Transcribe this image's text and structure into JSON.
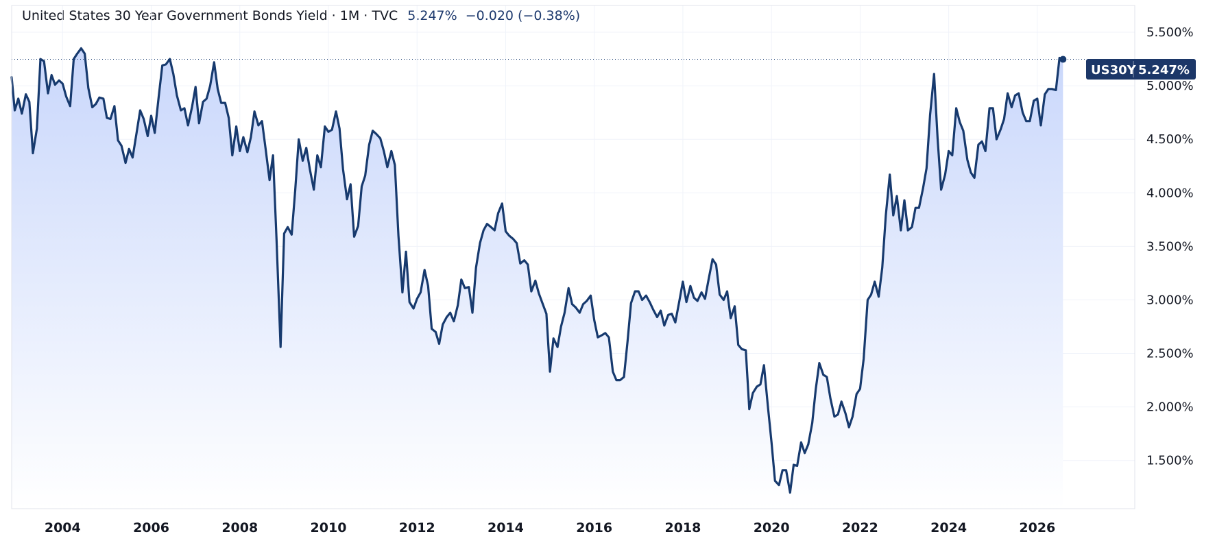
{
  "header": {
    "title": "United States 30 Year Government Bonds Yield · 1M · TVC",
    "last": "5.247%",
    "change": "−0.020 (−0.38%)"
  },
  "badge": {
    "symbol": "US30Y",
    "value": "5.247%"
  },
  "colors": {
    "line": "#173a6e",
    "fill_top": "#c9d7fb",
    "fill_bottom": "#ffffff",
    "badge": "#1c3768"
  },
  "chart_data": {
    "type": "area",
    "title": "United States 30 Year Government Bonds Yield · 1M · TVC",
    "xlabel": "",
    "ylabel": "",
    "ylim": [
      1.05,
      5.75
    ],
    "xlim": [
      2002.85,
      2028.2
    ],
    "grid": true,
    "y_ticks": [
      "5.500%",
      "5.000%",
      "4.500%",
      "4.000%",
      "3.500%",
      "3.000%",
      "2.500%",
      "2.000%",
      "1.500%"
    ],
    "y_tick_values": [
      5.5,
      5.0,
      4.5,
      4.0,
      3.5,
      3.0,
      2.5,
      2.0,
      1.5
    ],
    "x_ticks": [
      "2004",
      "2006",
      "2008",
      "2010",
      "2012",
      "2014",
      "2016",
      "2018",
      "2020",
      "2022",
      "2024",
      "2026"
    ],
    "x_tick_values": [
      2004,
      2006,
      2008,
      2010,
      2012,
      2014,
      2016,
      2018,
      2020,
      2022,
      2024,
      2026
    ],
    "series": [
      {
        "name": "US30Y",
        "x": [
          2002.85,
          2002.92,
          2003.0,
          2003.08,
          2003.17,
          2003.25,
          2003.33,
          2003.42,
          2003.5,
          2003.58,
          2003.67,
          2003.75,
          2003.83,
          2003.92,
          2004.0,
          2004.08,
          2004.17,
          2004.25,
          2004.33,
          2004.42,
          2004.5,
          2004.58,
          2004.67,
          2004.75,
          2004.83,
          2004.92,
          2005.0,
          2005.08,
          2005.17,
          2005.25,
          2005.33,
          2005.42,
          2005.5,
          2005.58,
          2005.67,
          2005.75,
          2005.83,
          2005.92,
          2006.0,
          2006.08,
          2006.17,
          2006.25,
          2006.33,
          2006.42,
          2006.5,
          2006.58,
          2006.67,
          2006.75,
          2006.83,
          2006.92,
          2007.0,
          2007.08,
          2007.17,
          2007.25,
          2007.33,
          2007.42,
          2007.5,
          2007.58,
          2007.67,
          2007.75,
          2007.83,
          2007.92,
          2008.0,
          2008.08,
          2008.17,
          2008.25,
          2008.33,
          2008.42,
          2008.5,
          2008.58,
          2008.67,
          2008.75,
          2008.83,
          2008.92,
          2009.0,
          2009.08,
          2009.17,
          2009.25,
          2009.33,
          2009.42,
          2009.5,
          2009.58,
          2009.67,
          2009.75,
          2009.83,
          2009.92,
          2010.0,
          2010.08,
          2010.17,
          2010.25,
          2010.33,
          2010.42,
          2010.5,
          2010.58,
          2010.67,
          2010.75,
          2010.83,
          2010.92,
          2011.0,
          2011.08,
          2011.17,
          2011.25,
          2011.33,
          2011.42,
          2011.5,
          2011.58,
          2011.67,
          2011.75,
          2011.83,
          2011.92,
          2012.0,
          2012.08,
          2012.17,
          2012.25,
          2012.33,
          2012.42,
          2012.5,
          2012.58,
          2012.67,
          2012.75,
          2012.83,
          2012.92,
          2013.0,
          2013.08,
          2013.17,
          2013.25,
          2013.33,
          2013.42,
          2013.5,
          2013.58,
          2013.67,
          2013.75,
          2013.83,
          2013.92,
          2014.0,
          2014.08,
          2014.17,
          2014.25,
          2014.33,
          2014.42,
          2014.5,
          2014.58,
          2014.67,
          2014.75,
          2014.83,
          2014.92,
          2015.0,
          2015.08,
          2015.17,
          2015.25,
          2015.33,
          2015.42,
          2015.5,
          2015.58,
          2015.67,
          2015.75,
          2015.83,
          2015.92,
          2016.0,
          2016.08,
          2016.17,
          2016.25,
          2016.33,
          2016.42,
          2016.5,
          2016.58,
          2016.67,
          2016.75,
          2016.83,
          2016.92,
          2017.0,
          2017.08,
          2017.17,
          2017.25,
          2017.33,
          2017.42,
          2017.5,
          2017.58,
          2017.67,
          2017.75,
          2017.83,
          2017.92,
          2018.0,
          2018.08,
          2018.17,
          2018.25,
          2018.33,
          2018.42,
          2018.5,
          2018.58,
          2018.67,
          2018.75,
          2018.83,
          2018.92,
          2019.0,
          2019.08,
          2019.17,
          2019.25,
          2019.33,
          2019.42,
          2019.5,
          2019.58,
          2019.67,
          2019.75,
          2019.83,
          2019.92,
          2020.0,
          2020.08,
          2020.17,
          2020.25,
          2020.33,
          2020.42,
          2020.5,
          2020.58,
          2020.67,
          2020.75,
          2020.83,
          2020.92,
          2021.0,
          2021.08,
          2021.17,
          2021.25,
          2021.33,
          2021.42,
          2021.5,
          2021.58,
          2021.67,
          2021.75,
          2021.83,
          2021.92,
          2022.0,
          2022.08,
          2022.17,
          2022.25,
          2022.33,
          2022.42,
          2022.5,
          2022.58,
          2022.67,
          2022.75,
          2022.83,
          2022.92,
          2023.0,
          2023.08,
          2023.17,
          2023.25,
          2023.33,
          2023.42,
          2023.5,
          2023.58,
          2023.67,
          2023.75,
          2023.83,
          2023.92,
          2024.0,
          2024.08,
          2024.17,
          2024.25,
          2024.33,
          2024.42,
          2024.5,
          2024.58,
          2024.67,
          2024.75,
          2024.83,
          2024.92,
          2025.0,
          2025.08,
          2025.17,
          2025.25,
          2025.33,
          2025.42,
          2025.5,
          2025.58,
          2025.67,
          2025.75,
          2025.83,
          2025.92,
          2026.0,
          2026.08,
          2026.17,
          2026.25,
          2026.33,
          2026.42,
          2026.5,
          2026.58
        ],
        "values": [
          5.08,
          4.77,
          4.88,
          4.74,
          4.92,
          4.85,
          4.37,
          4.6,
          5.25,
          5.23,
          4.93,
          5.1,
          5.01,
          5.05,
          5.02,
          4.9,
          4.81,
          5.25,
          5.3,
          5.35,
          5.3,
          4.98,
          4.8,
          4.83,
          4.89,
          4.88,
          4.7,
          4.69,
          4.81,
          4.49,
          4.44,
          4.28,
          4.41,
          4.33,
          4.56,
          4.77,
          4.69,
          4.53,
          4.72,
          4.56,
          4.9,
          5.19,
          5.2,
          5.25,
          5.11,
          4.91,
          4.77,
          4.79,
          4.63,
          4.8,
          4.99,
          4.65,
          4.85,
          4.88,
          5.0,
          5.22,
          4.97,
          4.84,
          4.84,
          4.7,
          4.35,
          4.62,
          4.39,
          4.52,
          4.38,
          4.52,
          4.76,
          4.63,
          4.67,
          4.42,
          4.12,
          4.35,
          3.55,
          2.56,
          3.62,
          3.68,
          3.61,
          4.02,
          4.5,
          4.3,
          4.42,
          4.22,
          4.03,
          4.35,
          4.24,
          4.62,
          4.57,
          4.59,
          4.76,
          4.6,
          4.22,
          3.94,
          4.08,
          3.59,
          3.69,
          4.06,
          4.16,
          4.45,
          4.58,
          4.55,
          4.51,
          4.39,
          4.24,
          4.39,
          4.26,
          3.6,
          3.07,
          3.45,
          2.98,
          2.92,
          3.01,
          3.07,
          3.28,
          3.13,
          2.73,
          2.7,
          2.59,
          2.77,
          2.84,
          2.88,
          2.8,
          2.95,
          3.19,
          3.11,
          3.12,
          2.88,
          3.3,
          3.53,
          3.65,
          3.71,
          3.68,
          3.65,
          3.81,
          3.9,
          3.64,
          3.6,
          3.57,
          3.53,
          3.34,
          3.37,
          3.33,
          3.08,
          3.18,
          3.06,
          2.97,
          2.87,
          2.33,
          2.64,
          2.56,
          2.75,
          2.88,
          3.11,
          2.96,
          2.93,
          2.88,
          2.96,
          2.99,
          3.04,
          2.81,
          2.65,
          2.67,
          2.69,
          2.65,
          2.33,
          2.25,
          2.25,
          2.28,
          2.61,
          2.97,
          3.08,
          3.08,
          3.0,
          3.04,
          2.98,
          2.91,
          2.84,
          2.9,
          2.76,
          2.86,
          2.87,
          2.79,
          2.99,
          3.17,
          2.98,
          3.13,
          3.02,
          2.99,
          3.07,
          3.01,
          3.19,
          3.38,
          3.33,
          3.05,
          3.0,
          3.08,
          2.83,
          2.94,
          2.58,
          2.54,
          2.53,
          1.98,
          2.13,
          2.19,
          2.21,
          2.39,
          2.0,
          1.67,
          1.31,
          1.27,
          1.41,
          1.41,
          1.2,
          1.46,
          1.45,
          1.67,
          1.57,
          1.65,
          1.85,
          2.17,
          2.41,
          2.3,
          2.28,
          2.08,
          1.91,
          1.93,
          2.05,
          1.94,
          1.81,
          1.91,
          2.12,
          2.17,
          2.45,
          3.0,
          3.05,
          3.17,
          3.03,
          3.3,
          3.79,
          4.17,
          3.79,
          3.97,
          3.65,
          3.93,
          3.65,
          3.68,
          3.86,
          3.86,
          4.04,
          4.23,
          4.73,
          5.11,
          4.5,
          4.03,
          4.17,
          4.39,
          4.35,
          4.79,
          4.66,
          4.58,
          4.31,
          4.19,
          4.14,
          4.45,
          4.48,
          4.39,
          4.79,
          4.79,
          4.5,
          4.59,
          4.69,
          4.93,
          4.8,
          4.91,
          4.93,
          4.75,
          4.67,
          4.67,
          4.86,
          4.88,
          4.63,
          4.92,
          4.97,
          4.97,
          4.96,
          5.26,
          5.247
        ]
      }
    ]
  }
}
